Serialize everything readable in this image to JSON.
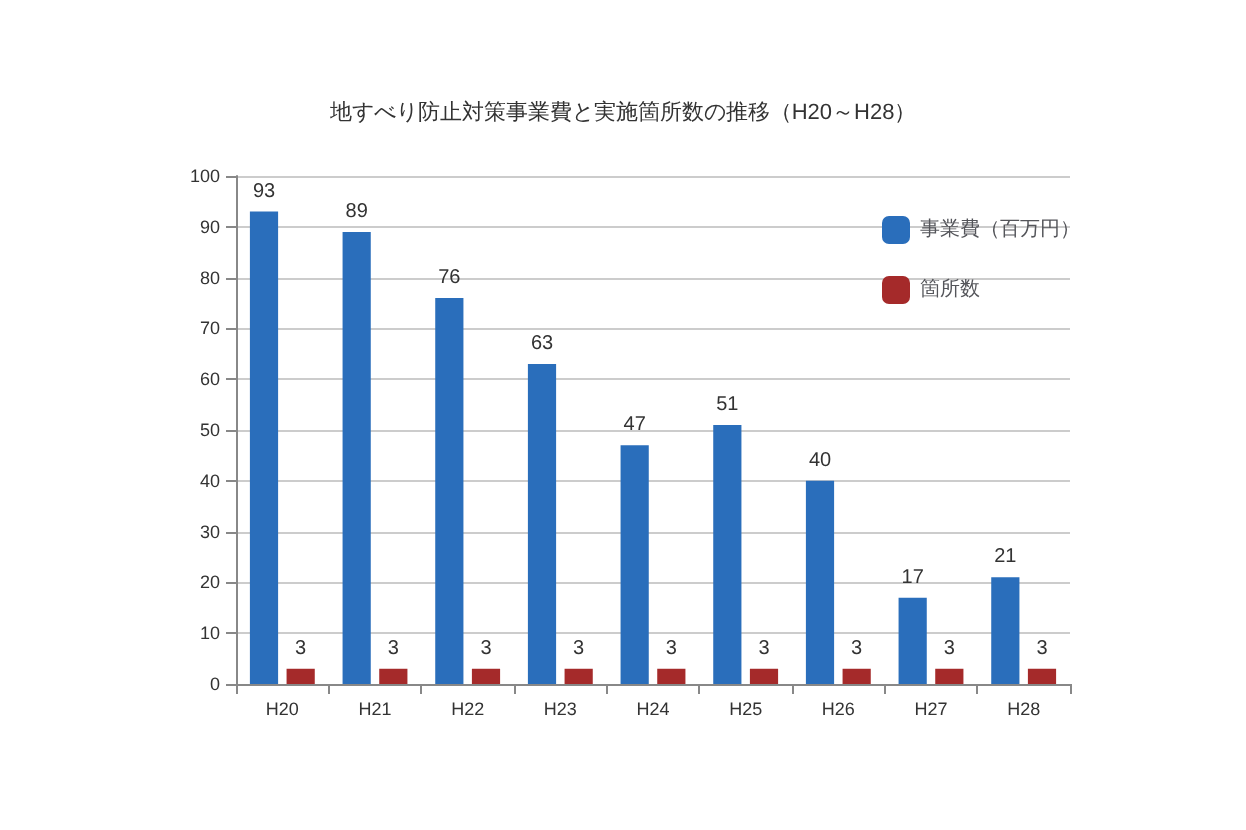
{
  "chart_data": {
    "type": "bar",
    "title": "地すべり防止対策事業費と実施箇所数の推移（H20～H28）",
    "categories": [
      "H20",
      "H21",
      "H22",
      "H23",
      "H24",
      "H25",
      "H26",
      "H27",
      "H28"
    ],
    "series": [
      {
        "name": "事業費（百万円）",
        "color": "#2a6ebb",
        "values": [
          93,
          89,
          76,
          63,
          47,
          51,
          40,
          17,
          21
        ]
      },
      {
        "name": "箇所数",
        "color": "#a52a2a",
        "values": [
          3,
          3,
          3,
          3,
          3,
          3,
          3,
          3,
          3
        ]
      }
    ],
    "ylim": [
      0,
      100
    ],
    "yticks": [
      0,
      10,
      20,
      30,
      40,
      50,
      60,
      70,
      80,
      90,
      100
    ],
    "grid": "y",
    "legend": "top right",
    "data_labels": true
  }
}
